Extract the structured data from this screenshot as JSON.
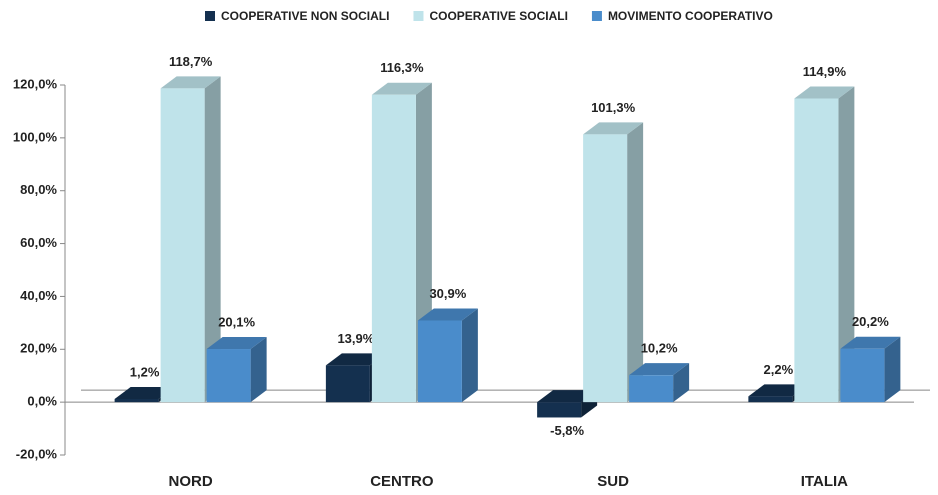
{
  "chart_data": {
    "type": "bar3d",
    "categories": [
      "NORD",
      "CENTRO",
      "SUD",
      "ITALIA"
    ],
    "series": [
      {
        "name": "COOPERATIVE NON SOCIALI",
        "color": "#14304f",
        "values": [
          1.2,
          13.9,
          -5.8,
          2.2
        ],
        "value_labels": [
          "1,2%",
          "13,9%",
          "-5,8%",
          "2,2%"
        ]
      },
      {
        "name": "COOPERATIVE SOCIALI",
        "color": "#bfe3ea",
        "values": [
          118.7,
          116.3,
          101.3,
          114.9
        ],
        "value_labels": [
          "118,7%",
          "116,3%",
          "101,3%",
          "114,9%"
        ]
      },
      {
        "name": "MOVIMENTO COOPERATIVO",
        "color": "#4a8ccb",
        "values": [
          20.1,
          30.9,
          10.2,
          20.2
        ],
        "value_labels": [
          "20,1%",
          "30,9%",
          "10,2%",
          "20,2%"
        ]
      }
    ],
    "ylim": [
      -20,
      120
    ],
    "yticks": [
      {
        "value": -20,
        "label": "-20,0%"
      },
      {
        "value": 0,
        "label": "0,0%"
      },
      {
        "value": 20,
        "label": "20,0%"
      },
      {
        "value": 40,
        "label": "40,0%"
      },
      {
        "value": 60,
        "label": "60,0%"
      },
      {
        "value": 80,
        "label": "80,0%"
      },
      {
        "value": 100,
        "label": "100,0%"
      },
      {
        "value": 120,
        "label": "120,0%"
      }
    ],
    "legend": "top",
    "grid": false
  }
}
